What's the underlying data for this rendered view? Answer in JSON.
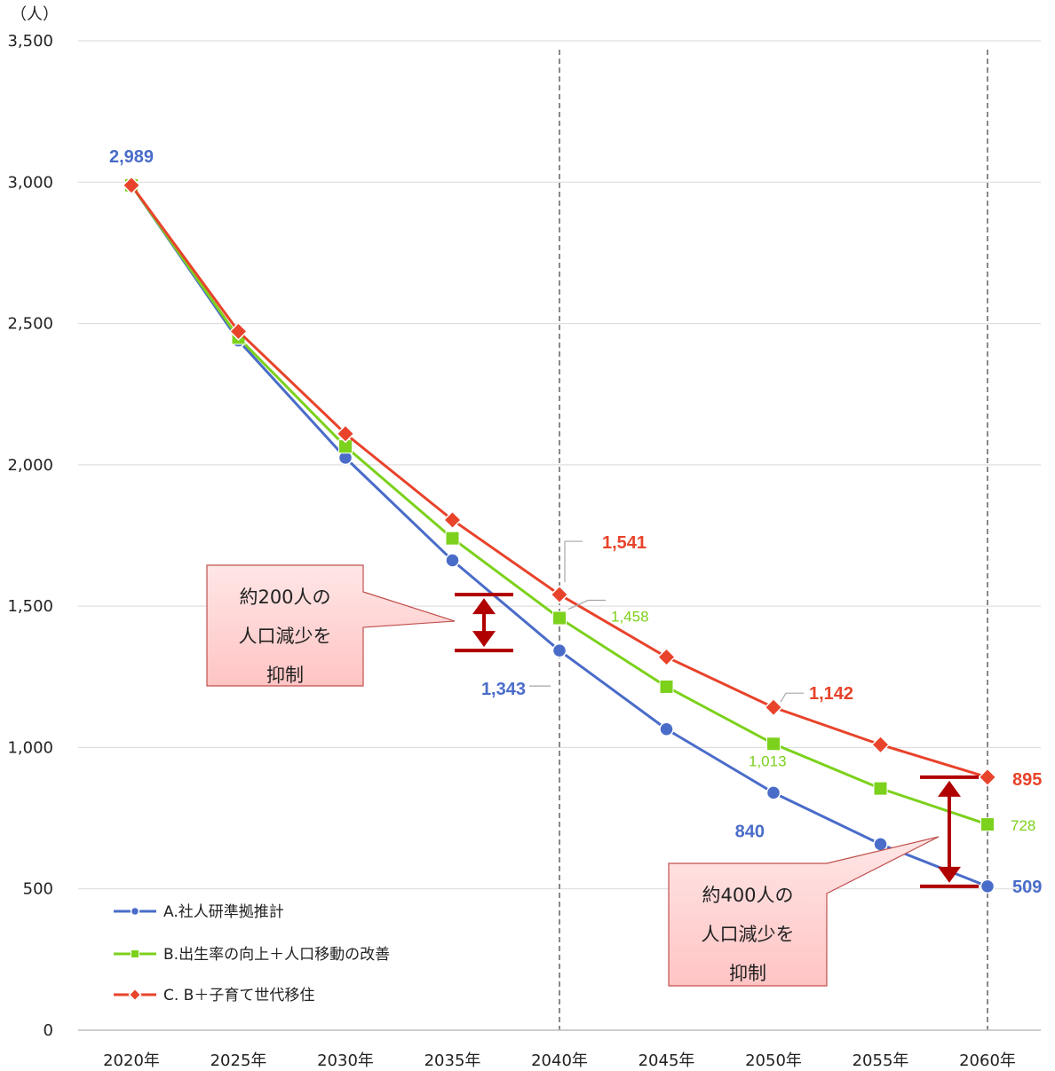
{
  "chart_data": {
    "type": "line",
    "ylabel": "（人）",
    "ylim": [
      0,
      3500
    ],
    "yticks": [
      "0",
      "500",
      "1,000",
      "1,500",
      "2,000",
      "2,500",
      "3,000",
      "3,500"
    ],
    "categories": [
      "2020年",
      "2025年",
      "2030年",
      "2035年",
      "2040年",
      "2045年",
      "2050年",
      "2055年",
      "2060年"
    ],
    "series": [
      {
        "name": "A.社人研準拠推計",
        "color": "#4a6cc9",
        "marker": "circle",
        "values": [
          2989,
          2440,
          2025,
          1662,
          1343,
          1065,
          840,
          658,
          509
        ]
      },
      {
        "name": "B.出生率の向上＋人口移動の改善",
        "color": "#7cd11c",
        "marker": "square",
        "values": [
          2989,
          2450,
          2065,
          1740,
          1458,
          1215,
          1013,
          855,
          728
        ]
      },
      {
        "name": "C. B＋子育て世代移住",
        "color": "#e8432b",
        "marker": "diamond",
        "values": [
          2989,
          2472,
          2110,
          1805,
          1541,
          1320,
          1142,
          1010,
          895
        ]
      }
    ],
    "data_labels": [
      {
        "text": "2,989",
        "series": 0,
        "index": 0,
        "style": "bold"
      },
      {
        "text": "1,343",
        "series": 0,
        "index": 4,
        "style": "bold"
      },
      {
        "text": "840",
        "series": 0,
        "index": 6,
        "style": "bold"
      },
      {
        "text": "509",
        "series": 0,
        "index": 8,
        "style": "bold"
      },
      {
        "text": "1,458",
        "series": 1,
        "index": 4,
        "style": "normal"
      },
      {
        "text": "1,013",
        "series": 1,
        "index": 6,
        "style": "normal"
      },
      {
        "text": "728",
        "series": 1,
        "index": 8,
        "style": "normal"
      },
      {
        "text": "1,541",
        "series": 2,
        "index": 4,
        "style": "bold"
      },
      {
        "text": "1,142",
        "series": 2,
        "index": 6,
        "style": "bold"
      },
      {
        "text": "895",
        "series": 2,
        "index": 8,
        "style": "bold"
      }
    ],
    "reference_lines": [
      "2040年",
      "2060年"
    ],
    "grid": true,
    "legend_position": "bottom-left",
    "annotations": [
      {
        "lines": [
          "約200人の",
          "人口減少を",
          "抑制"
        ],
        "category": "2040年"
      },
      {
        "lines": [
          "約400人の",
          "人口減少を",
          "抑制"
        ],
        "category": "2060年"
      }
    ]
  }
}
